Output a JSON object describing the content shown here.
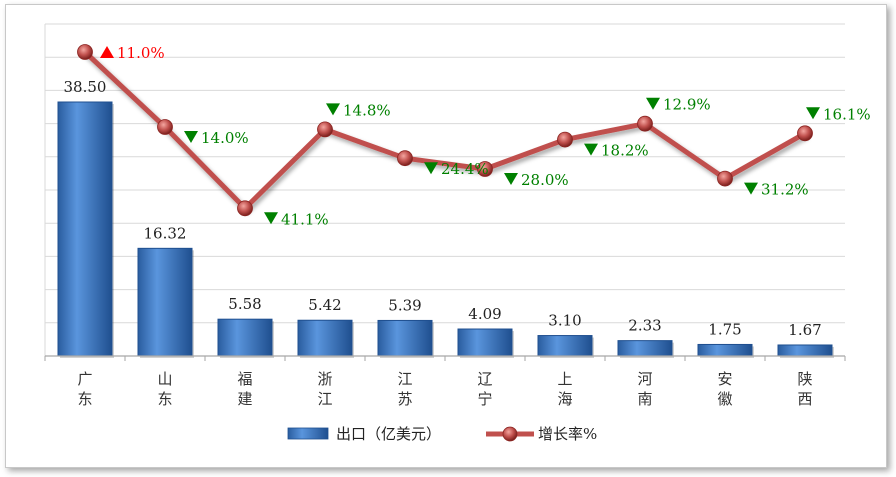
{
  "chart_data": {
    "type": "bar",
    "categories": [
      "广\n东",
      "山\n东",
      "福\n建",
      "浙\n江",
      "江\n苏",
      "辽\n宁",
      "上\n海",
      "河\n南",
      "安\n徽",
      "陕\n西"
    ],
    "series": [
      {
        "name": "出口（亿美元）",
        "type": "bar",
        "values": [
          38.5,
          16.32,
          5.58,
          5.42,
          5.39,
          4.09,
          3.1,
          2.33,
          1.75,
          1.67
        ],
        "labels": [
          "38.50",
          "16.32",
          "5.58",
          "5.42",
          "5.39",
          "4.09",
          "3.10",
          "2.33",
          "1.75",
          "1.67"
        ],
        "color": "#3f78c4"
      },
      {
        "name": "增长率%",
        "type": "line",
        "values": [
          11.0,
          -14.0,
          -41.1,
          -14.8,
          -24.4,
          -28.0,
          -18.2,
          -12.9,
          -31.2,
          -16.1
        ],
        "labels": [
          "11.0%",
          "14.0%",
          "41.1%",
          "14.8%",
          "24.4%",
          "28.0%",
          "18.2%",
          "12.9%",
          "31.2%",
          "16.1%"
        ],
        "directions": [
          "up",
          "down",
          "down",
          "down",
          "down",
          "down",
          "down",
          "down",
          "down",
          "down"
        ],
        "color": "#c0504d"
      }
    ],
    "colors": {
      "up": "#ff0000",
      "down": "#008000",
      "grid": "#d9d9d9",
      "axis": "#a6a6a6"
    },
    "grid": true,
    "legend_position": "bottom"
  }
}
